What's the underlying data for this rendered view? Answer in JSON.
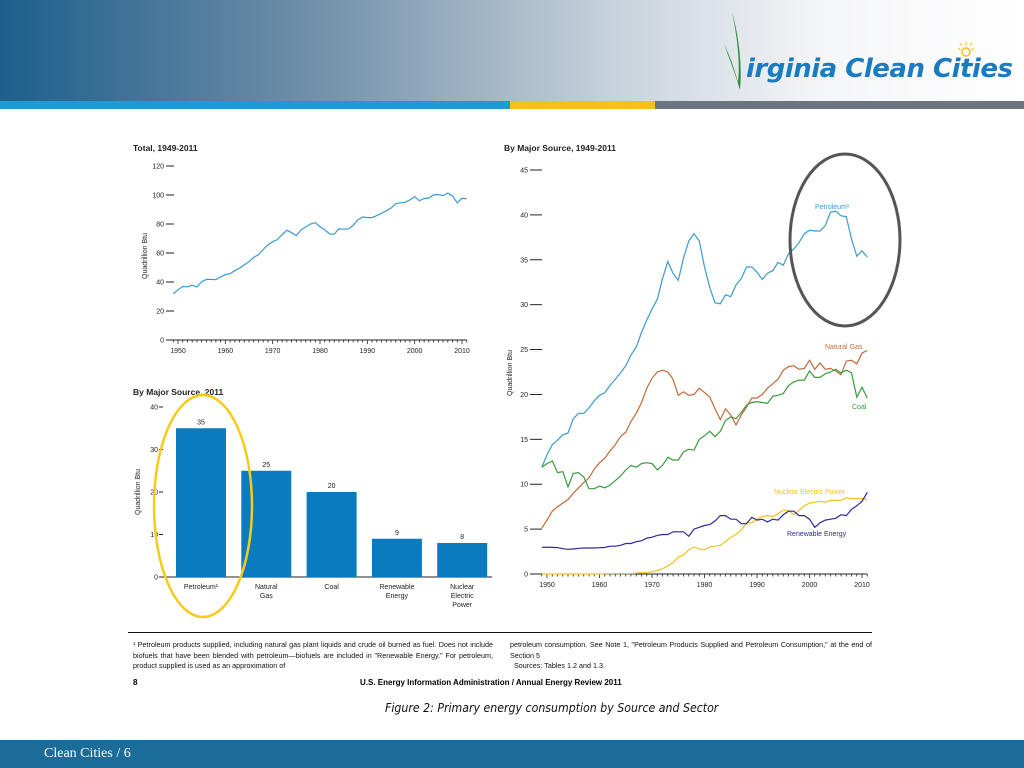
{
  "header": {
    "logo_text": "irginia Clean Cities",
    "logo_full": "Virginia Clean Cities",
    "stripe_colors": [
      "#1f9ad6",
      "#f2c21a",
      "#6b7680"
    ]
  },
  "colors": {
    "petroleum": "#3a9ad0",
    "natural_gas": "#c06a3a",
    "coal": "#3a9a3a",
    "nuclear": "#f2c31e",
    "renewable": "#2a2a9a",
    "bar": "#0b7bbf",
    "highlight_yellow": "#f5cc1a",
    "highlight_gray": "#555555"
  },
  "chart_data": [
    {
      "type": "line",
      "title": "Total, 1949-2011",
      "ylabel": "Quadrillion Btu",
      "xlim": [
        1949,
        2011
      ],
      "ylim": [
        0,
        120
      ],
      "yticks": [
        "0",
        "20",
        "40",
        "60",
        "80",
        "100",
        "120"
      ],
      "xticks": [
        "1950",
        "1960",
        "1970",
        "1980",
        "1990",
        "2000",
        "2010"
      ],
      "x_start": 1949,
      "values": [
        32,
        34.6,
        36.9,
        36.7,
        37.7,
        36.6,
        40.2,
        41.8,
        41.8,
        41.6,
        43.5,
        45.1,
        45.7,
        47.8,
        49.6,
        51.8,
        54.0,
        57.0,
        58.9,
        62.4,
        65.6,
        67.8,
        69.3,
        72.7,
        75.7,
        74.0,
        72.0,
        76.0,
        78.0,
        80.0,
        80.9,
        78.1,
        76.1,
        73.1,
        73.0,
        76.7,
        76.4,
        76.7,
        79.0,
        82.8,
        84.8,
        84.5,
        84.4,
        85.8,
        87.4,
        89.1,
        91.0,
        94.0,
        94.6,
        95.0,
        96.6,
        98.8,
        96.1,
        97.6,
        97.9,
        100.1,
        100.3,
        99.6,
        101.3,
        99.3,
        94.6,
        97.7,
        97.3
      ]
    },
    {
      "type": "bar",
      "title": "By Major Source, 2011",
      "ylabel": "Quadrillion Btu",
      "ylim": [
        0,
        40
      ],
      "yticks": [
        "0",
        "10",
        "20",
        "30",
        "40"
      ],
      "categories": [
        [
          "Petroleum¹"
        ],
        [
          "Natural",
          "Gas"
        ],
        [
          "Coal"
        ],
        [
          "Renewable",
          "Energy"
        ],
        [
          "Nuclear",
          "Electric",
          "Power"
        ]
      ],
      "values": [
        35,
        25,
        20,
        9,
        8
      ],
      "data_labels": [
        "35",
        "25",
        "20",
        "9",
        "8"
      ],
      "highlighted": "Petroleum¹"
    },
    {
      "type": "line",
      "title": "By Major Source, 1949-2011",
      "ylabel": "Quadrillion Btu",
      "xlim": [
        1949,
        2011
      ],
      "ylim": [
        0,
        45
      ],
      "yticks": [
        "0",
        "5",
        "10",
        "15",
        "20",
        "25",
        "30",
        "35",
        "40",
        "45"
      ],
      "xticks": [
        "1950",
        "1960",
        "1970",
        "1980",
        "1990",
        "2000",
        "2010"
      ],
      "x_start": 1949,
      "highlighted": "Petroleum¹ 1997-2011",
      "series": [
        {
          "name": "Petroleum¹",
          "color": "#3a9ad0",
          "values": [
            11.9,
            13.3,
            14.4,
            14.9,
            15.5,
            15.7,
            17.3,
            17.9,
            17.9,
            18.5,
            19.3,
            19.9,
            20.2,
            21.0,
            21.7,
            22.4,
            23.2,
            24.4,
            25.3,
            26.9,
            28.3,
            29.5,
            30.6,
            32.9,
            34.8,
            33.5,
            32.7,
            35.2,
            37.1,
            37.9,
            37.1,
            34.2,
            31.9,
            30.2,
            30.1,
            31.1,
            30.9,
            32.2,
            32.9,
            34.2,
            34.2,
            33.6,
            32.8,
            33.5,
            33.8,
            34.7,
            34.4,
            35.7,
            36.2,
            36.9,
            37.9,
            38.3,
            38.2,
            38.2,
            38.8,
            40.3,
            40.4,
            39.9,
            39.8,
            37.3,
            35.4,
            36.0,
            35.3
          ]
        },
        {
          "name": "Natural Gas",
          "color": "#c06a3a",
          "values": [
            5.1,
            6.0,
            7.0,
            7.5,
            7.9,
            8.3,
            9.0,
            9.6,
            10.2,
            10.7,
            11.7,
            12.4,
            12.9,
            13.7,
            14.4,
            15.3,
            15.8,
            17.0,
            17.9,
            19.1,
            20.7,
            21.8,
            22.5,
            22.7,
            22.5,
            21.7,
            19.9,
            20.3,
            19.9,
            20.0,
            20.7,
            20.2,
            19.7,
            18.4,
            17.2,
            18.4,
            17.7,
            16.6,
            17.7,
            18.6,
            19.6,
            19.6,
            20.0,
            20.7,
            21.2,
            21.7,
            22.7,
            23.1,
            23.2,
            22.8,
            22.9,
            23.8,
            22.8,
            23.5,
            22.8,
            22.9,
            22.6,
            22.2,
            23.7,
            23.8,
            23.4,
            24.6,
            24.9
          ]
        },
        {
          "name": "Coal",
          "color": "#3a9a3a",
          "values": [
            11.9,
            12.3,
            12.6,
            11.3,
            11.4,
            9.7,
            11.2,
            11.3,
            10.8,
            9.5,
            9.5,
            9.8,
            9.6,
            9.9,
            10.4,
            10.9,
            11.6,
            12.1,
            11.9,
            12.3,
            12.4,
            12.3,
            11.6,
            12.1,
            13.0,
            12.7,
            12.7,
            13.6,
            13.9,
            13.8,
            15.0,
            15.4,
            15.9,
            15.3,
            15.9,
            17.1,
            17.5,
            17.3,
            18.0,
            18.8,
            19.1,
            19.2,
            19.1,
            19.0,
            19.8,
            19.9,
            20.1,
            21.0,
            21.4,
            21.6,
            21.6,
            22.6,
            21.9,
            21.9,
            22.3,
            22.5,
            22.8,
            22.4,
            22.7,
            22.4,
            19.7,
            20.8,
            19.6
          ]
        },
        {
          "name": "Nuclear Electric Power",
          "color": "#f2c31e",
          "values": [
            0,
            0,
            0,
            0,
            0,
            0,
            0,
            0,
            0,
            0,
            0,
            0.01,
            0.02,
            0.03,
            0.04,
            0.04,
            0.04,
            0.06,
            0.09,
            0.14,
            0.15,
            0.24,
            0.41,
            0.58,
            0.91,
            1.27,
            1.9,
            2.1,
            2.7,
            3.0,
            2.8,
            2.7,
            3.0,
            3.1,
            3.2,
            3.6,
            4.1,
            4.4,
            4.9,
            5.7,
            5.7,
            6.1,
            6.4,
            6.5,
            6.4,
            6.7,
            7.1,
            7.1,
            6.6,
            7.1,
            7.6,
            7.9,
            8.0,
            8.1,
            8.0,
            8.2,
            8.2,
            8.2,
            8.5,
            8.4,
            8.4,
            8.4,
            8.3
          ]
        },
        {
          "name": "Renewable Energy",
          "color": "#2a2a9a",
          "values": [
            2.97,
            2.98,
            2.96,
            2.94,
            2.82,
            2.75,
            2.78,
            2.86,
            2.9,
            2.9,
            2.9,
            2.93,
            2.95,
            3.1,
            3.1,
            3.2,
            3.4,
            3.4,
            3.6,
            3.7,
            4.0,
            4.1,
            4.3,
            4.4,
            4.4,
            4.7,
            4.7,
            4.7,
            4.2,
            5.0,
            5.2,
            5.4,
            5.5,
            5.9,
            6.5,
            6.5,
            6.1,
            6.1,
            5.6,
            5.6,
            6.3,
            6.0,
            6.1,
            5.8,
            6.1,
            6.0,
            6.6,
            7.0,
            7.0,
            6.5,
            6.5,
            6.1,
            5.2,
            5.7,
            6.0,
            6.1,
            6.2,
            6.6,
            6.5,
            7.2,
            7.6,
            8.1,
            9.1
          ]
        }
      ]
    }
  ],
  "footnote": {
    "col1": "¹ Petroleum products supplied, including natural gas plant liquids and crude oil burned as fuel. Does not include biofuels that have been blended with petroleum—biofuels are included in \"Renewable Energy.\" For petroleum, product supplied is used as an approximation of",
    "col2": "petroleum consumption. See Note 1, \"Petroleum Products Supplied and Petroleum Consumption,\" at the end of Section 5",
    "sources": "Sources: Tables 1.2 and 1.3.",
    "page_number": "8",
    "publication": "U.S. Energy Information Administration / Annual Energy Review 2011"
  },
  "caption": "Figure 2: Primary energy consumption by Source and Sector",
  "footer": {
    "text": "Clean Cities  /  6"
  }
}
